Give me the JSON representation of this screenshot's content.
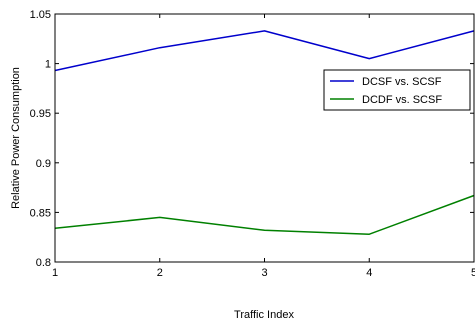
{
  "chart_data": {
    "type": "line",
    "title": "",
    "xlabel": "Traffic Index",
    "ylabel": "Relative Power Consumption",
    "x": [
      1,
      2,
      3,
      4,
      5
    ],
    "xlim": [
      1,
      5
    ],
    "ylim": [
      0.8,
      1.05
    ],
    "xticks": [
      1,
      2,
      3,
      4,
      5
    ],
    "yticks": [
      0.8,
      0.85,
      0.9,
      0.95,
      1,
      1.05
    ],
    "xtick_labels": [
      "1",
      "2",
      "3",
      "4",
      "5"
    ],
    "ytick_labels": [
      "0.8",
      "0.85",
      "0.9",
      "0.95",
      "1",
      "1.05"
    ],
    "grid": false,
    "legend_position": "upper-right",
    "series": [
      {
        "name": "DCSF vs. SCSF",
        "color": "#0000cc",
        "values": [
          0.993,
          1.016,
          1.033,
          1.005,
          1.033
        ]
      },
      {
        "name": "DCDF vs. SCSF",
        "color": "#008000",
        "values": [
          0.834,
          0.845,
          0.832,
          0.828,
          0.867
        ]
      }
    ]
  }
}
